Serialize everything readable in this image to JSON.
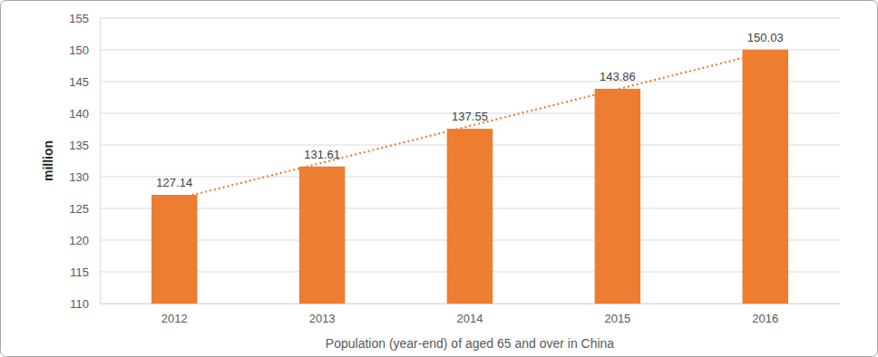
{
  "chart_data": {
    "type": "bar",
    "categories": [
      "2012",
      "2013",
      "2014",
      "2015",
      "2016"
    ],
    "series": [
      {
        "type": "bar",
        "color": "#ed7d31",
        "data_labels": true,
        "values": [
          127.14,
          131.61,
          137.55,
          143.86,
          150.03
        ]
      },
      {
        "type": "line",
        "color": "#ed7d31",
        "line_style": "dotted",
        "values": [
          126.4,
          132.2,
          138.0,
          143.8,
          149.6
        ]
      }
    ],
    "x_label": "Population (year-end) of aged 65 and over in China",
    "y_label": "million",
    "ylim": [
      110,
      155
    ],
    "yticks": [
      110,
      115,
      120,
      125,
      130,
      135,
      140,
      145,
      150,
      155
    ],
    "grid": true
  }
}
